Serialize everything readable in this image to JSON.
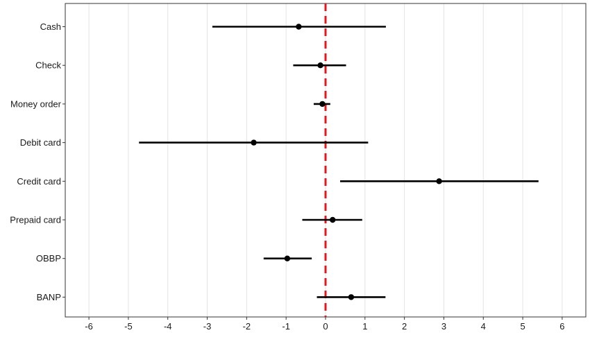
{
  "chart_data": {
    "type": "forest",
    "categories": [
      "Cash",
      "Check",
      "Money order",
      "Debit card",
      "Credit card",
      "Prepaid card",
      "OBBP",
      "BANP"
    ],
    "estimates": [
      -0.68,
      -0.13,
      -0.08,
      -1.82,
      2.88,
      0.18,
      -0.97,
      0.65
    ],
    "ci_low": [
      -2.87,
      -0.82,
      -0.3,
      -4.73,
      0.37,
      -0.59,
      -1.57,
      -0.22
    ],
    "ci_high": [
      1.53,
      0.52,
      0.12,
      1.08,
      5.4,
      0.93,
      -0.35,
      1.52
    ],
    "xlim": [
      -6.6,
      6.6
    ],
    "xticks": [
      -6,
      -5,
      -4,
      -3,
      -2,
      -1,
      0,
      1,
      2,
      3,
      4,
      5,
      6
    ],
    "reference_line": 0,
    "reference_color": "#e8161b",
    "marker_color": "#000000",
    "grid": "vertical",
    "title": "",
    "xlabel": "",
    "ylabel": ""
  }
}
